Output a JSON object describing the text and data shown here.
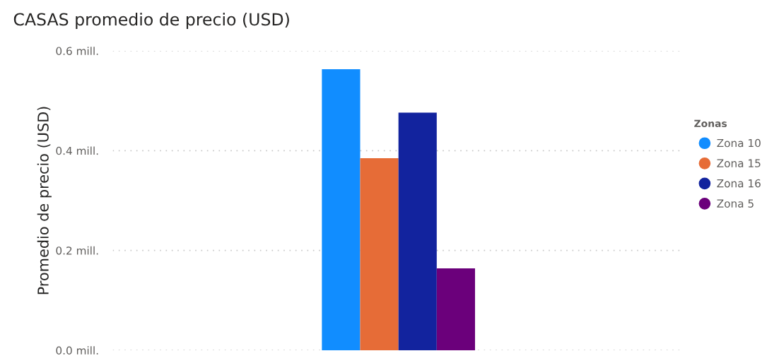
{
  "chart_data": {
    "type": "bar",
    "title": "CASAS promedio de precio (USD)",
    "ylabel": "Promedio de precio (USD)",
    "legend_title": "Zonas",
    "categories": [
      null
    ],
    "series": [
      {
        "name": "Zona 10",
        "color": "#118dff",
        "values": [
          0.563
        ]
      },
      {
        "name": "Zona 15",
        "color": "#e66c37",
        "values": [
          0.385
        ]
      },
      {
        "name": "Zona 16",
        "color": "#12239e",
        "values": [
          0.476
        ]
      },
      {
        "name": "Zona 5",
        "color": "#6b007b",
        "values": [
          0.164
        ]
      }
    ],
    "ylim": [
      0,
      0.6
    ],
    "yticks": [
      {
        "value": 0,
        "label": "0.0 mill."
      },
      {
        "value": 0.2,
        "label": "0.2 mill."
      },
      {
        "value": 0.4,
        "label": "0.4 mill."
      },
      {
        "value": 0.6,
        "label": "0.6 mill."
      }
    ],
    "grid": "y",
    "legend": "right"
  }
}
